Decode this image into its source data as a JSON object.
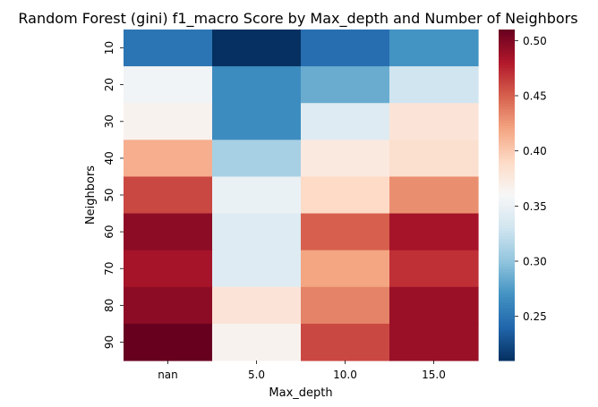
{
  "chart_data": {
    "type": "heatmap",
    "title": "Random Forest (gini) f1_macro Score by Max_depth and Number of Neighbors",
    "xlabel": "Max_depth",
    "ylabel": "Neighbors",
    "x_categories": [
      "nan",
      "5.0",
      "10.0",
      "15.0"
    ],
    "y_categories": [
      "10",
      "20",
      "30",
      "40",
      "50",
      "60",
      "70",
      "80",
      "90"
    ],
    "values": [
      [
        0.25,
        0.21,
        0.245,
        0.27
      ],
      [
        0.355,
        0.265,
        0.285,
        0.33
      ],
      [
        0.365,
        0.265,
        0.34,
        0.38
      ],
      [
        0.415,
        0.31,
        0.375,
        0.385
      ],
      [
        0.46,
        0.35,
        0.39,
        0.43
      ],
      [
        0.495,
        0.34,
        0.45,
        0.485
      ],
      [
        0.485,
        0.34,
        0.42,
        0.47
      ],
      [
        0.495,
        0.38,
        0.435,
        0.49
      ],
      [
        0.51,
        0.365,
        0.46,
        0.49
      ]
    ],
    "colorbar": {
      "min": 0.21,
      "max": 0.51,
      "ticks": [
        "0.25",
        "0.30",
        "0.35",
        "0.40",
        "0.45",
        "0.50"
      ],
      "colormap": "RdBu_r"
    },
    "grid": false
  }
}
